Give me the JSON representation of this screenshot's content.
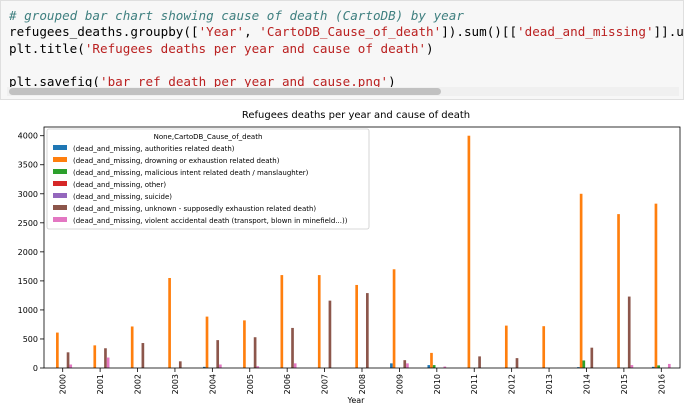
{
  "code": {
    "lines": [
      {
        "segments": [
          {
            "t": "# grouped bar chart showing cause of death (CartoDB) by year",
            "c": "cmt"
          }
        ]
      },
      {
        "segments": [
          {
            "t": "refugees_deaths.groupby([",
            "c": ""
          },
          {
            "t": "'Year'",
            "c": "str"
          },
          {
            "t": ", ",
            "c": ""
          },
          {
            "t": "'CartoDB_Cause_of_death'",
            "c": "str"
          },
          {
            "t": "]).sum()[[",
            "c": ""
          },
          {
            "t": "'dead_and_missing'",
            "c": "str"
          },
          {
            "t": "]].unstack",
            "c": ""
          }
        ]
      },
      {
        "segments": [
          {
            "t": "plt.title(",
            "c": ""
          },
          {
            "t": "'Refugees deaths per year and cause of death'",
            "c": "str"
          },
          {
            "t": ")",
            "c": ""
          }
        ]
      },
      {
        "segments": [
          {
            "t": "",
            "c": ""
          }
        ]
      },
      {
        "segments": [
          {
            "t": "plt.savefig(",
            "c": ""
          },
          {
            "t": "'bar_ref_death_per_year_and_cause.png'",
            "c": "str"
          },
          {
            "t": ")",
            "c": ""
          }
        ]
      }
    ]
  },
  "chart_data": {
    "type": "bar",
    "title": "Refugees deaths per year and cause of death",
    "xlabel": "Year",
    "ylabel": "",
    "ylim": [
      0,
      4150
    ],
    "yticks": [
      0,
      500,
      1000,
      1500,
      2000,
      2500,
      3000,
      3500,
      4000
    ],
    "grid": false,
    "legend_title": "None,CartoDB_Cause_of_death",
    "legend_position": "upper-left",
    "categories": [
      "2000",
      "2001",
      "2002",
      "2003",
      "2004",
      "2005",
      "2006",
      "2007",
      "2008",
      "2009",
      "2010",
      "2011",
      "2012",
      "2013",
      "2014",
      "2015",
      "2016"
    ],
    "series": [
      {
        "name": "(dead_and_missing, authorities related death)",
        "color": "#1f77b4",
        "values": [
          0,
          0,
          0,
          0,
          20,
          0,
          0,
          0,
          0,
          80,
          50,
          0,
          0,
          0,
          15,
          0,
          20
        ]
      },
      {
        "name": "(dead_and_missing, drowning or exhaustion related death)",
        "color": "#ff7f0e",
        "values": [
          610,
          390,
          715,
          1550,
          885,
          820,
          1600,
          1600,
          1430,
          1700,
          260,
          4000,
          730,
          720,
          3000,
          2650,
          2830
        ]
      },
      {
        "name": "(dead_and_missing, malicious intent related death / manslaughter)",
        "color": "#2ca02c",
        "values": [
          0,
          0,
          0,
          0,
          0,
          0,
          0,
          0,
          0,
          0,
          50,
          0,
          0,
          0,
          130,
          0,
          45
        ]
      },
      {
        "name": "(dead_and_missing, other)",
        "color": "#d62728",
        "values": [
          0,
          0,
          0,
          0,
          0,
          0,
          0,
          0,
          0,
          0,
          0,
          0,
          0,
          0,
          0,
          0,
          0
        ]
      },
      {
        "name": "(dead_and_missing, suicide)",
        "color": "#9467bd",
        "values": [
          0,
          0,
          0,
          0,
          0,
          0,
          0,
          0,
          0,
          0,
          0,
          0,
          0,
          0,
          0,
          0,
          0
        ]
      },
      {
        "name": "(dead_and_missing, unknown - supposedly exhaustion related death)",
        "color": "#8c564b",
        "values": [
          270,
          340,
          430,
          115,
          480,
          530,
          690,
          1160,
          1290,
          135,
          0,
          200,
          170,
          0,
          350,
          1230,
          0
        ]
      },
      {
        "name": "(dead_and_missing, violent accidental death (transport, blown in minefield...))",
        "color": "#e377c2",
        "values": [
          60,
          180,
          0,
          0,
          60,
          30,
          80,
          0,
          0,
          80,
          25,
          0,
          0,
          0,
          0,
          50,
          70
        ]
      }
    ]
  }
}
